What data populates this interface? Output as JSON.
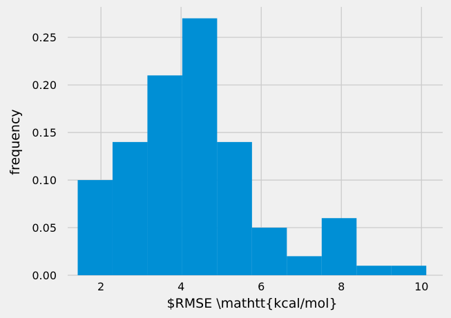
{
  "chart_data": {
    "type": "bar",
    "subtype": "histogram",
    "xlabel": "$RMSE \\mathtt{kcal/mol}",
    "ylabel": "frequency",
    "xlim": [
      1.17,
      10.53
    ],
    "ylim": [
      0,
      0.282
    ],
    "xticks": [
      2,
      4,
      6,
      8,
      10
    ],
    "yticks": [
      0.0,
      0.05,
      0.1,
      0.15,
      0.2,
      0.25
    ],
    "xtick_labels": [
      "2",
      "4",
      "6",
      "8",
      "10"
    ],
    "ytick_labels": [
      "0.00",
      "0.05",
      "0.10",
      "0.15",
      "0.20",
      "0.25"
    ],
    "grid": true,
    "bin_edges": [
      1.42,
      2.29,
      3.16,
      4.03,
      4.9,
      5.77,
      6.64,
      7.51,
      8.38,
      9.25,
      10.12
    ],
    "values": [
      0.1,
      0.14,
      0.21,
      0.27,
      0.14,
      0.05,
      0.02,
      0.06,
      0.01,
      0.01
    ],
    "colors": {
      "bar": "#008fd5",
      "background": "#f0f0f0",
      "grid": "#cbcbcb"
    }
  }
}
